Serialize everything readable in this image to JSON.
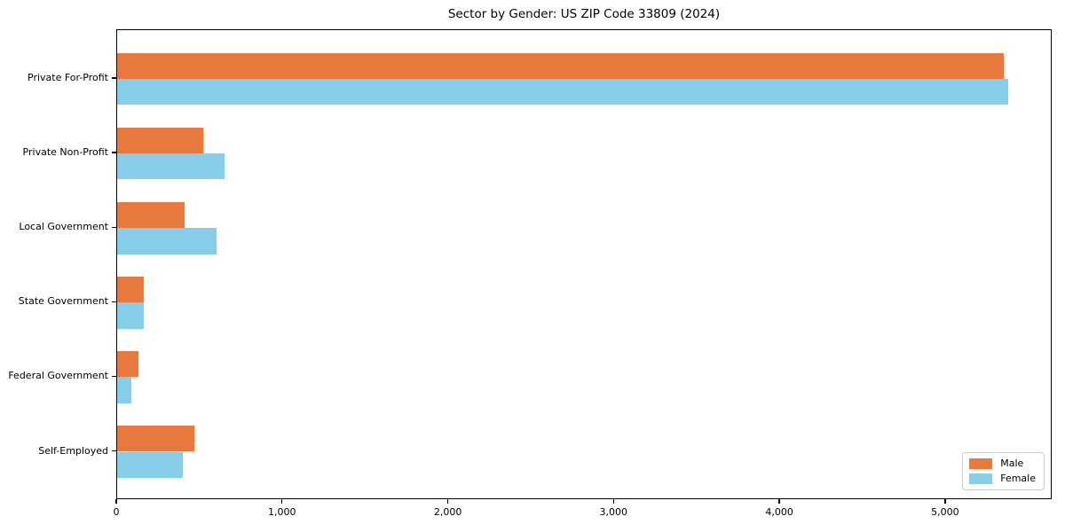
{
  "title": "Sector by Gender: US ZIP Code 33809 (2024)",
  "chart_data": {
    "type": "bar",
    "orientation": "horizontal",
    "title": "Sector by Gender: US ZIP Code 33809 (2024)",
    "categories": [
      "Private For-Profit",
      "Private Non-Profit",
      "Local Government",
      "State Government",
      "Federal Government",
      "Self-Employed"
    ],
    "series": [
      {
        "name": "Male",
        "color": "#e8793d",
        "values": [
          5350,
          520,
          405,
          160,
          128,
          465
        ]
      },
      {
        "name": "Female",
        "color": "#87ceeb",
        "values": [
          5375,
          650,
          600,
          160,
          88,
          395
        ]
      }
    ],
    "xlabel": "",
    "ylabel": "",
    "xlim": [
      0,
      5643
    ],
    "x_ticks": [
      0,
      1000,
      2000,
      3000,
      4000,
      5000
    ],
    "x_tick_labels": [
      "0",
      "1,000",
      "2,000",
      "3,000",
      "4,000",
      "5,000"
    ],
    "grid": false,
    "legend_position": "lower right",
    "spine_color": "#000000",
    "background_color": "#ffffff"
  }
}
